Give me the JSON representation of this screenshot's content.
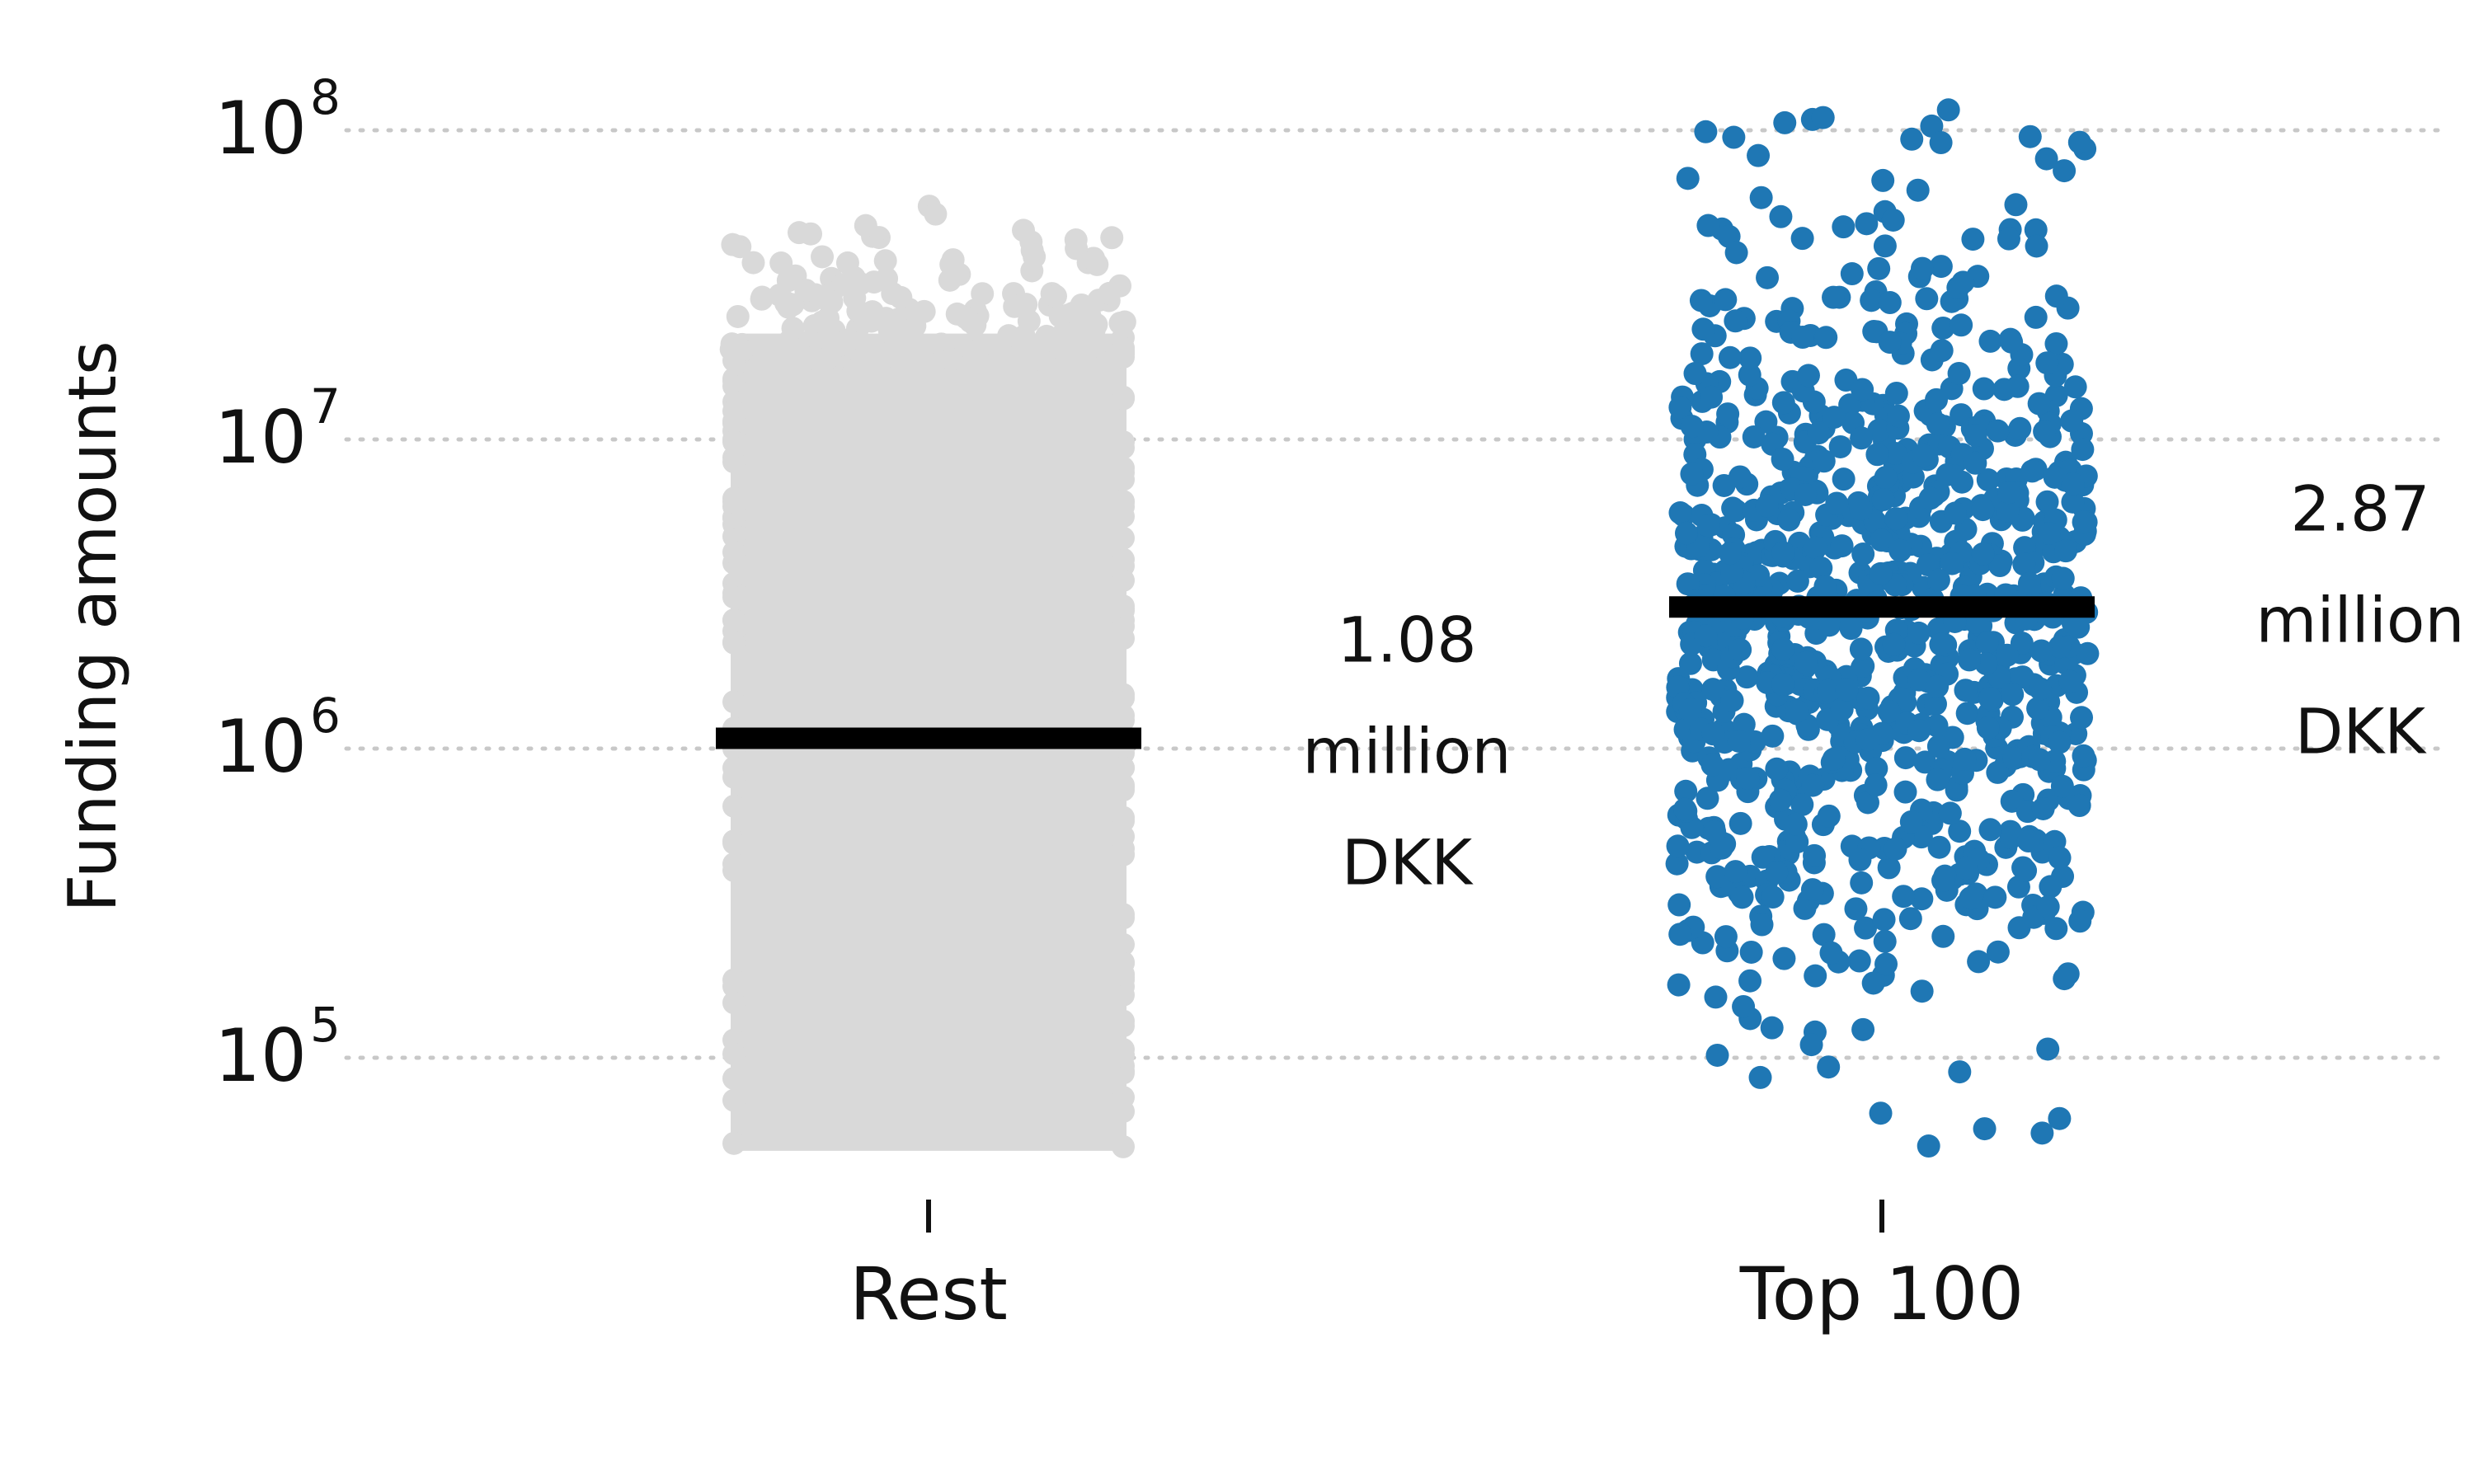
{
  "chart_data": {
    "type": "scatter",
    "title": "",
    "xlabel": "",
    "ylabel": "Funding amounts",
    "y_scale": "log",
    "ylim": [
      30000,
      150000000
    ],
    "y_ticks": [
      {
        "value": 100000,
        "base": "10",
        "exp": "5"
      },
      {
        "value": 1000000,
        "base": "10",
        "exp": "6"
      },
      {
        "value": 10000000,
        "base": "10",
        "exp": "7"
      },
      {
        "value": 100000000,
        "base": "10",
        "exp": "8"
      }
    ],
    "grid": "horizontal dotted",
    "categories": [
      "Rest",
      "Top 100"
    ],
    "series": [
      {
        "category": "Rest",
        "color": "#d9d9d9",
        "y_range": [
          50000,
          60000000
        ],
        "median": 1080000,
        "median_label": [
          "1.08",
          "million",
          "DKK"
        ]
      },
      {
        "category": "Top 100",
        "color": "#1f77b4",
        "y_range": [
          50000,
          120000000
        ],
        "median": 2870000,
        "median_label": [
          "2.87",
          "million",
          "DKK"
        ]
      }
    ]
  }
}
